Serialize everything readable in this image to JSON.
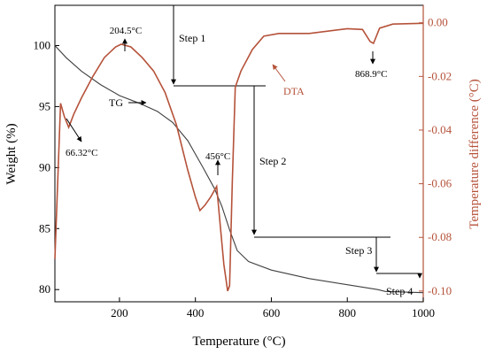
{
  "chart_data": {
    "type": "line",
    "xlabel": "Temperature (°C)",
    "ylabel_left": "Weight (%)",
    "ylabel_right": "Temperature difference (°C)",
    "xlim": [
      30,
      1000
    ],
    "ylim_left": [
      79,
      103.3
    ],
    "ylim_right": [
      -0.104,
      0.0065
    ],
    "x_ticks": [
      200,
      400,
      600,
      800,
      1000
    ],
    "y_left_ticks": [
      80,
      85,
      90,
      95,
      100
    ],
    "y_right_ticks": [
      0.0,
      -0.02,
      -0.04,
      -0.06,
      -0.08,
      -0.1
    ],
    "grid": false,
    "colors": {
      "tg": "#404040",
      "dta": "#b5523a",
      "axis_right": "#b5523a",
      "axis": "#000000"
    },
    "series": [
      {
        "name": "TG",
        "axis": "left",
        "x": [
          30,
          60,
          100,
          150,
          200,
          250,
          300,
          340,
          380,
          420,
          450,
          470,
          490,
          510,
          540,
          600,
          700,
          800,
          880,
          900,
          1000
        ],
        "values": [
          100.0,
          99.0,
          97.9,
          96.8,
          95.9,
          95.3,
          94.6,
          93.7,
          92.2,
          90.0,
          88.3,
          86.8,
          84.9,
          83.2,
          82.3,
          81.6,
          80.9,
          80.4,
          80.0,
          79.85,
          79.75
        ]
      },
      {
        "name": "DTA",
        "axis": "right",
        "x": [
          30,
          45,
          55,
          66.32,
          80,
          100,
          130,
          160,
          190,
          204.5,
          230,
          260,
          290,
          320,
          350,
          380,
          400,
          412,
          425,
          440,
          456,
          465,
          475,
          485,
          490,
          497,
          505,
          520,
          550,
          580,
          620,
          700,
          800,
          840,
          860,
          868.9,
          885,
          920,
          1000
        ],
        "values": [
          -0.088,
          -0.03,
          -0.035,
          -0.039,
          -0.034,
          -0.028,
          -0.02,
          -0.013,
          -0.009,
          -0.008,
          -0.009,
          -0.013,
          -0.018,
          -0.026,
          -0.038,
          -0.055,
          -0.065,
          -0.07,
          -0.068,
          -0.065,
          -0.061,
          -0.075,
          -0.09,
          -0.1,
          -0.098,
          -0.06,
          -0.024,
          -0.018,
          -0.01,
          -0.005,
          -0.004,
          -0.004,
          -0.0022,
          -0.0025,
          -0.007,
          -0.0077,
          -0.002,
          -0.0005,
          -0.0002
        ]
      }
    ],
    "annotations": [
      {
        "text": "204.5°C"
      },
      {
        "text": "66.32°C"
      },
      {
        "text": "456°C"
      },
      {
        "text": "868.9°C"
      },
      {
        "text": "TG"
      },
      {
        "text": "DTA"
      },
      {
        "text": "Step 1"
      },
      {
        "text": "Step 2"
      },
      {
        "text": "Step 3"
      },
      {
        "text": "Step 4"
      }
    ]
  }
}
